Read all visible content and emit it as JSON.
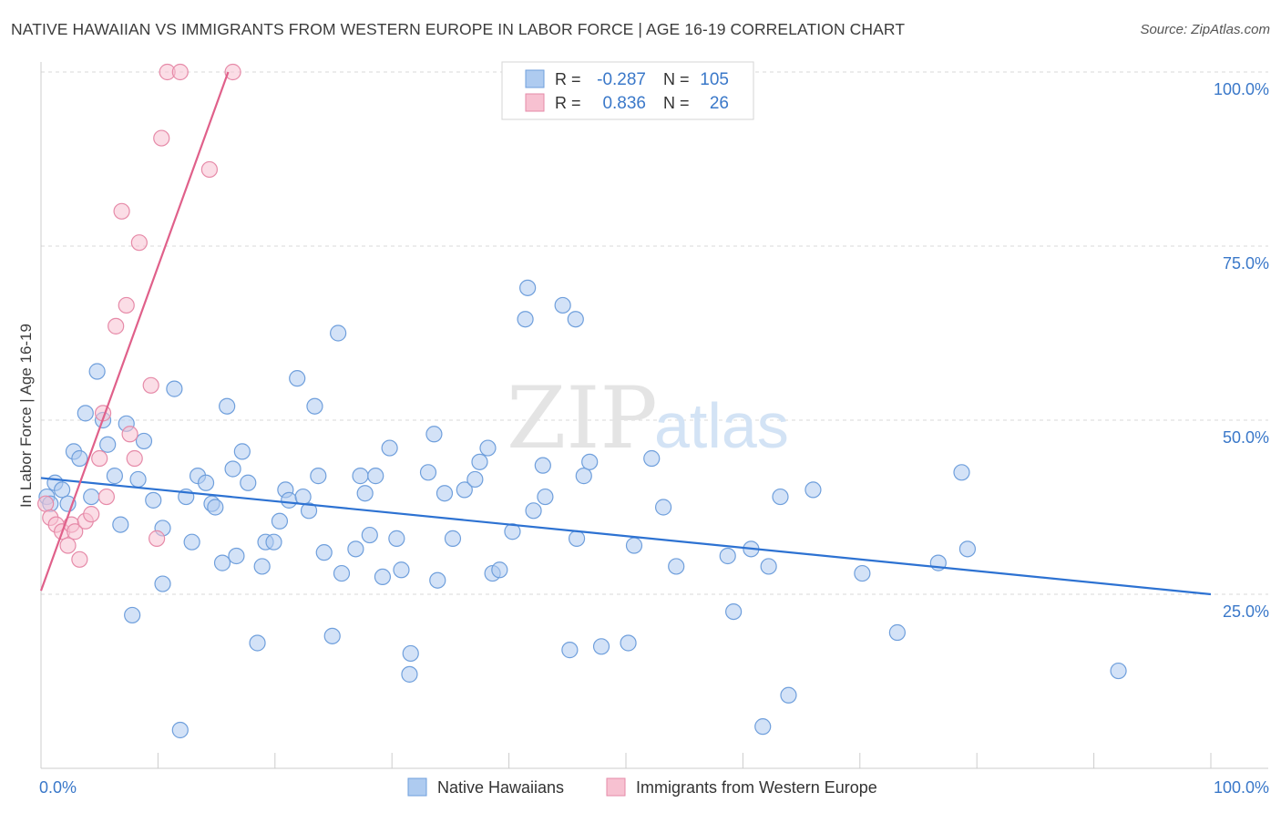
{
  "title": "NATIVE HAWAIIAN VS IMMIGRANTS FROM WESTERN EUROPE IN LABOR FORCE | AGE 16-19 CORRELATION CHART",
  "source": "Source: ZipAtlas.com",
  "watermark": {
    "zip": "ZIP",
    "atlas": "atlas"
  },
  "legend_box": {
    "rows": [
      {
        "r_label": "R =",
        "r_value": "-0.287",
        "n_label": "N =",
        "n_value": "105"
      },
      {
        "r_label": "R =",
        "r_value": "0.836",
        "n_label": "N =",
        "n_value": "26"
      }
    ]
  },
  "bottom_legend": [
    "Native Hawaiians",
    "Immigrants from Western Europe"
  ],
  "colors": {
    "blue_fill": "#aecbf0",
    "blue_stroke": "#6f9fdc",
    "blue_line": "#2d72d2",
    "pink_fill": "#f7c1d1",
    "pink_stroke": "#e68aa8",
    "pink_line": "#e0608a",
    "value_blue": "#3a78c9",
    "grid": "#d8d8d8"
  },
  "chart_data": {
    "type": "scatter",
    "title": "NATIVE HAWAIIAN VS IMMIGRANTS FROM WESTERN EUROPE IN LABOR FORCE | AGE 16-19 CORRELATION CHART",
    "xlabel": "",
    "ylabel": "In Labor Force | Age 16-19",
    "xlim": [
      0,
      100
    ],
    "ylim": [
      0,
      100
    ],
    "x_tick_labels": [
      "0.0%",
      "100.0%"
    ],
    "y_tick_labels": [
      "25.0%",
      "50.0%",
      "75.0%",
      "100.0%"
    ],
    "grid": true,
    "legend_position": "bottom",
    "series": [
      {
        "name": "Native Hawaiians",
        "r": -0.287,
        "n": 105,
        "trend": {
          "x": [
            0,
            100
          ],
          "y": [
            41.7,
            25.0
          ]
        },
        "points": [
          [
            0.5,
            39
          ],
          [
            0.8,
            38
          ],
          [
            1.2,
            41
          ],
          [
            1.8,
            40
          ],
          [
            2.3,
            38
          ],
          [
            2.8,
            45.5
          ],
          [
            3.3,
            44.5
          ],
          [
            3.8,
            51
          ],
          [
            4.3,
            39
          ],
          [
            4.8,
            57
          ],
          [
            5.3,
            50
          ],
          [
            5.7,
            46.5
          ],
          [
            6.3,
            42
          ],
          [
            6.8,
            35
          ],
          [
            7.3,
            49.5
          ],
          [
            7.8,
            22
          ],
          [
            8.3,
            41.5
          ],
          [
            8.8,
            47
          ],
          [
            9.6,
            38.5
          ],
          [
            10.4,
            34.5
          ],
          [
            10.4,
            26.5
          ],
          [
            11.4,
            54.5
          ],
          [
            11.9,
            5.5
          ],
          [
            12.4,
            39
          ],
          [
            12.9,
            32.5
          ],
          [
            13.4,
            42
          ],
          [
            14.1,
            41
          ],
          [
            14.6,
            38
          ],
          [
            14.9,
            37.5
          ],
          [
            15.5,
            29.5
          ],
          [
            15.9,
            52
          ],
          [
            16.4,
            43
          ],
          [
            16.7,
            30.5
          ],
          [
            17.2,
            45.5
          ],
          [
            17.7,
            41
          ],
          [
            18.5,
            18
          ],
          [
            18.9,
            29
          ],
          [
            19.2,
            32.5
          ],
          [
            19.9,
            32.5
          ],
          [
            20.4,
            35.5
          ],
          [
            20.9,
            40
          ],
          [
            21.2,
            38.5
          ],
          [
            21.9,
            56
          ],
          [
            22.4,
            39
          ],
          [
            22.9,
            37
          ],
          [
            23.4,
            52
          ],
          [
            23.7,
            42
          ],
          [
            24.2,
            31
          ],
          [
            24.9,
            19
          ],
          [
            25.4,
            62.5
          ],
          [
            25.7,
            28
          ],
          [
            26.9,
            31.5
          ],
          [
            27.3,
            42
          ],
          [
            27.7,
            39.5
          ],
          [
            28.1,
            33.5
          ],
          [
            28.6,
            42
          ],
          [
            29.2,
            27.5
          ],
          [
            29.8,
            46
          ],
          [
            30.4,
            33
          ],
          [
            30.8,
            28.5
          ],
          [
            31.6,
            16.5
          ],
          [
            31.5,
            13.5
          ],
          [
            33.1,
            42.5
          ],
          [
            33.6,
            48
          ],
          [
            33.9,
            27
          ],
          [
            34.5,
            39.5
          ],
          [
            35.2,
            33
          ],
          [
            36.2,
            40
          ],
          [
            37.1,
            41.5
          ],
          [
            37.5,
            44
          ],
          [
            38.2,
            46
          ],
          [
            38.6,
            28
          ],
          [
            39.2,
            28.5
          ],
          [
            40.3,
            34
          ],
          [
            41.6,
            69
          ],
          [
            41.4,
            64.5
          ],
          [
            42.1,
            37
          ],
          [
            42.9,
            43.5
          ],
          [
            43.1,
            39
          ],
          [
            44.6,
            66.5
          ],
          [
            45.7,
            64.5
          ],
          [
            45.2,
            17
          ],
          [
            45.8,
            33
          ],
          [
            46.4,
            42
          ],
          [
            46.9,
            44
          ],
          [
            47.9,
            17.5
          ],
          [
            50.2,
            18
          ],
          [
            50.7,
            32
          ],
          [
            52.2,
            44.5
          ],
          [
            53.2,
            37.5
          ],
          [
            54.3,
            29
          ],
          [
            58.7,
            30.5
          ],
          [
            59.2,
            22.5
          ],
          [
            60.7,
            31.5
          ],
          [
            61.7,
            6
          ],
          [
            62.2,
            29
          ],
          [
            63.2,
            39
          ],
          [
            63.9,
            10.5
          ],
          [
            66.0,
            40
          ],
          [
            70.2,
            28
          ],
          [
            73.2,
            19.5
          ],
          [
            76.7,
            29.5
          ],
          [
            78.7,
            42.5
          ],
          [
            79.2,
            31.5
          ],
          [
            92.1,
            14
          ]
        ]
      },
      {
        "name": "Immigrants from Western Europe",
        "r": 0.836,
        "n": 26,
        "trend": {
          "x": [
            0,
            16
          ],
          "y": [
            25.5,
            100
          ]
        },
        "points": [
          [
            0.4,
            38
          ],
          [
            0.8,
            36
          ],
          [
            1.3,
            35
          ],
          [
            1.8,
            34
          ],
          [
            2.3,
            32
          ],
          [
            2.6,
            35
          ],
          [
            2.9,
            34
          ],
          [
            3.3,
            30
          ],
          [
            3.8,
            35.5
          ],
          [
            4.3,
            36.5
          ],
          [
            5.0,
            44.5
          ],
          [
            5.3,
            51
          ],
          [
            5.6,
            39
          ],
          [
            6.4,
            63.5
          ],
          [
            6.9,
            80
          ],
          [
            7.3,
            66.5
          ],
          [
            7.6,
            48
          ],
          [
            8.0,
            44.5
          ],
          [
            8.4,
            75.5
          ],
          [
            9.4,
            55
          ],
          [
            9.9,
            33
          ],
          [
            10.3,
            90.5
          ],
          [
            10.8,
            100
          ],
          [
            11.9,
            100
          ],
          [
            14.4,
            86
          ],
          [
            16.4,
            100
          ]
        ]
      }
    ]
  }
}
